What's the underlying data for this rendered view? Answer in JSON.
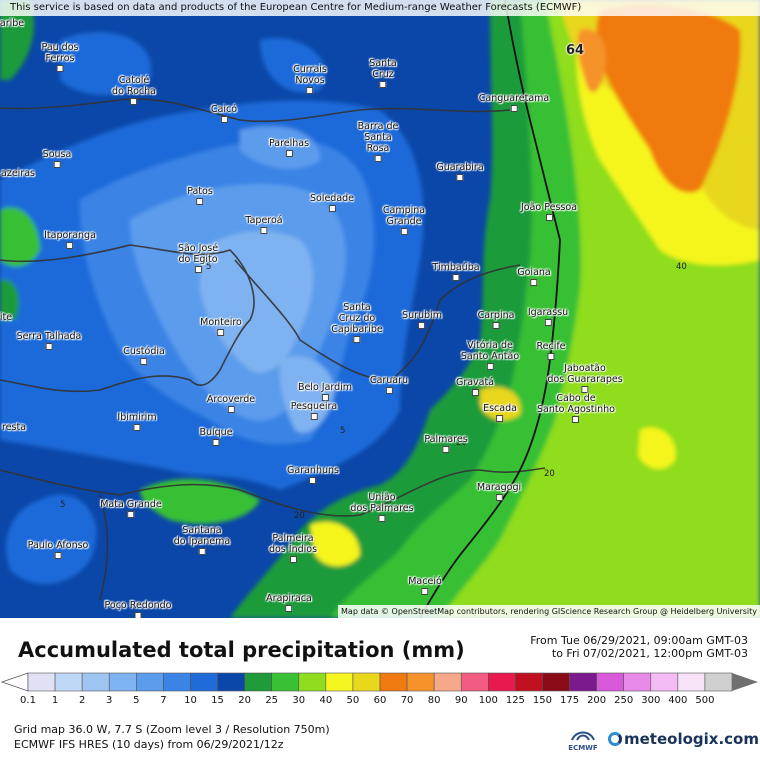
{
  "header": {
    "attribution": "This service is based on data and products of the European Centre for Medium-range Weather Forecasts (ECMWF)"
  },
  "map": {
    "credit": "Map data © OpenStreetMap contributors, rendering GIScience Research Group @ Heidelberg University",
    "max_value": "64",
    "contour_labels": [
      "40",
      "20",
      "20",
      "20",
      "5",
      "5",
      "5"
    ],
    "places": [
      {
        "name": "aribe",
        "dot": false
      },
      {
        "name": "Pau dos\nFerros",
        "dot": true
      },
      {
        "name": "Catolé\ndo Rocha",
        "dot": true
      },
      {
        "name": "Currais\nNovos",
        "dot": true
      },
      {
        "name": "Santa\nCruz",
        "dot": true
      },
      {
        "name": "Canguaretama",
        "dot": true
      },
      {
        "name": "Caicó",
        "dot": true
      },
      {
        "name": "Barra de\nSanta\nRosa",
        "dot": true
      },
      {
        "name": "Parelhas",
        "dot": true
      },
      {
        "name": "Sousa",
        "dot": true
      },
      {
        "name": "azeiras",
        "dot": false
      },
      {
        "name": "Guarabira",
        "dot": true
      },
      {
        "name": "Patos",
        "dot": true
      },
      {
        "name": "Soledade",
        "dot": true
      },
      {
        "name": "Campina\nGrande",
        "dot": true
      },
      {
        "name": "João Pessoa",
        "dot": true
      },
      {
        "name": "Taperoá",
        "dot": true
      },
      {
        "name": "Itaporanga",
        "dot": true
      },
      {
        "name": "São José\ndo Egito",
        "dot": true
      },
      {
        "name": "Timbaúba",
        "dot": true
      },
      {
        "name": "Goiana",
        "dot": true
      },
      {
        "name": "Igarassu",
        "dot": true
      },
      {
        "name": "ite",
        "dot": false
      },
      {
        "name": "Monteiro",
        "dot": true
      },
      {
        "name": "Santa\nCruz do\nCapibaribe",
        "dot": true
      },
      {
        "name": "Surubim",
        "dot": true
      },
      {
        "name": "Carpina",
        "dot": true
      },
      {
        "name": "Serra Talhada",
        "dot": true
      },
      {
        "name": "Custódia",
        "dot": true
      },
      {
        "name": "Vitória de\nSanto Antão",
        "dot": true
      },
      {
        "name": "Recife",
        "dot": true
      },
      {
        "name": "Jaboatão\ndos Guararapes",
        "dot": true
      },
      {
        "name": "Caruaru",
        "dot": true
      },
      {
        "name": "Gravatá",
        "dot": true
      },
      {
        "name": "Belo Jardim",
        "dot": true
      },
      {
        "name": "Arcoverde",
        "dot": true
      },
      {
        "name": "Pesqueira",
        "dot": true
      },
      {
        "name": "Cabo de\nSanto Agostinho",
        "dot": true
      },
      {
        "name": "Escada",
        "dot": true
      },
      {
        "name": "Ibimirim",
        "dot": true
      },
      {
        "name": "resta",
        "dot": false
      },
      {
        "name": "Buíque",
        "dot": true
      },
      {
        "name": "Palmares",
        "dot": true
      },
      {
        "name": "Garanhuns",
        "dot": true
      },
      {
        "name": "Maragogi",
        "dot": true
      },
      {
        "name": "Mata Grande",
        "dot": true
      },
      {
        "name": "União\ndos Palmares",
        "dot": true
      },
      {
        "name": "Santana\ndo Ipanema",
        "dot": true
      },
      {
        "name": "Palmeira\ndos Índios",
        "dot": true
      },
      {
        "name": "Paulo Afonso",
        "dot": true
      },
      {
        "name": "Maceió",
        "dot": true
      },
      {
        "name": "Arapiraca",
        "dot": true
      },
      {
        "name": "Poço Redondo",
        "dot": true
      }
    ]
  },
  "legend": {
    "title": "Accumulated total precipitation (mm)",
    "period_from": "From Tue 06/29/2021, 09:00am GMT-03",
    "period_to": "to Fri 07/02/2021, 12:00pm GMT-03",
    "scale": [
      {
        "label": "0.1",
        "color": "#e1e1f4"
      },
      {
        "label": "1",
        "color": "#c0d8f7"
      },
      {
        "label": "2",
        "color": "#9ec4f2"
      },
      {
        "label": "3",
        "color": "#7fb2f0"
      },
      {
        "label": "5",
        "color": "#5c9cec"
      },
      {
        "label": "7",
        "color": "#3a84e6"
      },
      {
        "label": "10",
        "color": "#1e6bd9"
      },
      {
        "label": "15",
        "color": "#0b47a8"
      },
      {
        "label": "20",
        "color": "#1f9b3a"
      },
      {
        "label": "25",
        "color": "#39c034"
      },
      {
        "label": "30",
        "color": "#8fdd1e"
      },
      {
        "label": "40",
        "color": "#f5f51f"
      },
      {
        "label": "50",
        "color": "#e8d71a"
      },
      {
        "label": "60",
        "color": "#f07a10"
      },
      {
        "label": "70",
        "color": "#f5922a"
      },
      {
        "label": "80",
        "color": "#f5a98a"
      },
      {
        "label": "90",
        "color": "#f25c82"
      },
      {
        "label": "100",
        "color": "#e8194f"
      },
      {
        "label": "125",
        "color": "#c01020"
      },
      {
        "label": "150",
        "color": "#8a0a18"
      },
      {
        "label": "175",
        "color": "#7a1a8c"
      },
      {
        "label": "200",
        "color": "#d85ad8"
      },
      {
        "label": "250",
        "color": "#e88ae8"
      },
      {
        "label": "300",
        "color": "#f3baf3"
      },
      {
        "label": "400",
        "color": "#f8e2f8"
      },
      {
        "label": "500",
        "color": "#d0d0d0"
      }
    ],
    "grid_info": "Grid map 36.0 W, 7.7 S (Zoom level 3 / Resolution 750m)",
    "model_info": "ECMWF IFS HRES (10 days) from 06/29/2021/12z",
    "ecmwf_logo": "ECMWF",
    "brand": "meteologix.com"
  }
}
